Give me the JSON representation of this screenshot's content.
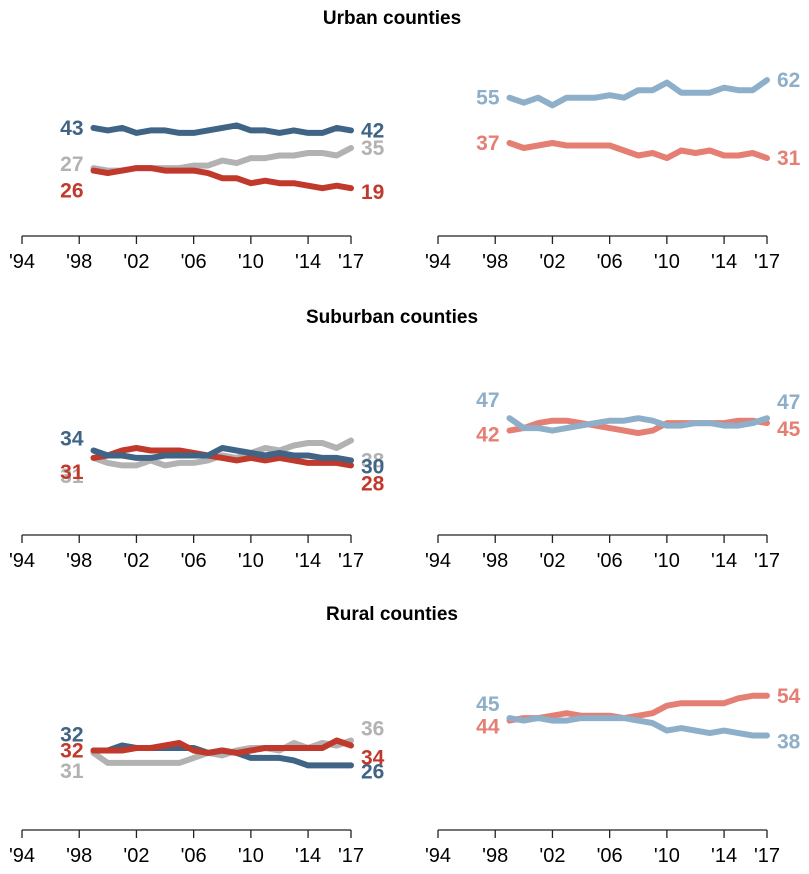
{
  "chart_data": [
    {
      "type": "line",
      "title": "Urban counties",
      "x": [
        1999,
        2000,
        2001,
        2002,
        2003,
        2004,
        2005,
        2006,
        2007,
        2008,
        2009,
        2010,
        2011,
        2012,
        2013,
        2014,
        2015,
        2016,
        2017
      ],
      "xticks": [
        "'94",
        "'98",
        "'02",
        "'06",
        "'10",
        "'14",
        "'17"
      ],
      "xlim": [
        1994,
        2017
      ],
      "ylim": [
        0,
        70
      ],
      "grid": false,
      "series": [
        {
          "key": "dem",
          "color": "#3f6485",
          "values": [
            43,
            42,
            43,
            41,
            42,
            42,
            41,
            41,
            42,
            43,
            44,
            42,
            42,
            41,
            42,
            41,
            41,
            43,
            42
          ],
          "start_label": "43",
          "end_label": "42"
        },
        {
          "key": "ind",
          "color": "#b2b2b2",
          "values": [
            27,
            26,
            26,
            27,
            27,
            27,
            27,
            28,
            28,
            30,
            29,
            31,
            31,
            32,
            32,
            33,
            33,
            32,
            35
          ],
          "start_label": "27",
          "end_label": "35"
        },
        {
          "key": "rep",
          "color": "#c0392b",
          "values": [
            26,
            25,
            26,
            27,
            27,
            26,
            26,
            26,
            25,
            23,
            23,
            21,
            22,
            21,
            21,
            20,
            19,
            20,
            19
          ],
          "start_label": "26",
          "end_label": "19"
        }
      ]
    },
    {
      "type": "line",
      "title": "",
      "x": [
        1999,
        2000,
        2001,
        2002,
        2003,
        2004,
        2005,
        2006,
        2007,
        2008,
        2009,
        2010,
        2011,
        2012,
        2013,
        2014,
        2015,
        2016,
        2017
      ],
      "xticks": [
        "'94",
        "'98",
        "'02",
        "'06",
        "'10",
        "'14",
        "'17"
      ],
      "xlim": [
        1994,
        2017
      ],
      "ylim": [
        0,
        70
      ],
      "grid": false,
      "series": [
        {
          "key": "dem_lean",
          "color": "#8eafc9",
          "values": [
            55,
            53,
            55,
            52,
            55,
            55,
            55,
            56,
            55,
            58,
            58,
            61,
            57,
            57,
            57,
            59,
            58,
            58,
            62
          ],
          "start_label": "55",
          "end_label": "62"
        },
        {
          "key": "rep_lean",
          "color": "#e57f73",
          "values": [
            37,
            35,
            36,
            37,
            36,
            36,
            36,
            36,
            34,
            32,
            33,
            31,
            34,
            33,
            34,
            32,
            32,
            33,
            31
          ],
          "start_label": "37",
          "end_label": "31"
        }
      ]
    },
    {
      "type": "line",
      "title": "Suburban counties",
      "x": [
        1999,
        2000,
        2001,
        2002,
        2003,
        2004,
        2005,
        2006,
        2007,
        2008,
        2009,
        2010,
        2011,
        2012,
        2013,
        2014,
        2015,
        2016,
        2017
      ],
      "xticks": [
        "'94",
        "'98",
        "'02",
        "'06",
        "'10",
        "'14",
        "'17"
      ],
      "xlim": [
        1994,
        2017
      ],
      "ylim": [
        0,
        70
      ],
      "grid": false,
      "series": [
        {
          "key": "ind",
          "color": "#b2b2b2",
          "values": [
            31,
            29,
            28,
            28,
            30,
            28,
            29,
            29,
            30,
            32,
            31,
            33,
            35,
            34,
            36,
            37,
            37,
            35,
            38
          ],
          "start_label": "31",
          "end_label": "38"
        },
        {
          "key": "rep",
          "color": "#c0392b",
          "values": [
            31,
            32,
            34,
            35,
            34,
            34,
            34,
            33,
            32,
            31,
            30,
            31,
            30,
            31,
            30,
            29,
            29,
            29,
            28
          ],
          "start_label": "31",
          "end_label": "28"
        },
        {
          "key": "dem",
          "color": "#3f6485",
          "values": [
            34,
            32,
            32,
            31,
            31,
            32,
            32,
            32,
            32,
            35,
            34,
            33,
            32,
            33,
            32,
            32,
            31,
            31,
            30
          ],
          "start_label": "34",
          "end_label": "30"
        }
      ]
    },
    {
      "type": "line",
      "title": "",
      "x": [
        1999,
        2000,
        2001,
        2002,
        2003,
        2004,
        2005,
        2006,
        2007,
        2008,
        2009,
        2010,
        2011,
        2012,
        2013,
        2014,
        2015,
        2016,
        2017
      ],
      "xticks": [
        "'94",
        "'98",
        "'02",
        "'06",
        "'10",
        "'14",
        "'17"
      ],
      "xlim": [
        1994,
        2017
      ],
      "ylim": [
        0,
        70
      ],
      "grid": false,
      "series": [
        {
          "key": "rep_lean",
          "color": "#e57f73",
          "values": [
            42,
            43,
            45,
            46,
            46,
            45,
            44,
            43,
            42,
            41,
            42,
            45,
            45,
            45,
            45,
            45,
            46,
            46,
            45
          ],
          "start_label": "42",
          "end_label": "45"
        },
        {
          "key": "dem_lean",
          "color": "#8eafc9",
          "values": [
            47,
            43,
            43,
            42,
            43,
            44,
            45,
            46,
            46,
            47,
            46,
            44,
            44,
            45,
            45,
            44,
            44,
            45,
            47
          ],
          "start_label": "47",
          "end_label": "47"
        }
      ]
    },
    {
      "type": "line",
      "title": "Rural counties",
      "x": [
        1999,
        2000,
        2001,
        2002,
        2003,
        2004,
        2005,
        2006,
        2007,
        2008,
        2009,
        2010,
        2011,
        2012,
        2013,
        2014,
        2015,
        2016,
        2017
      ],
      "xticks": [
        "'94",
        "'98",
        "'02",
        "'06",
        "'10",
        "'14",
        "'17"
      ],
      "xlim": [
        1994,
        2017
      ],
      "ylim": [
        0,
        70
      ],
      "grid": false,
      "series": [
        {
          "key": "ind",
          "color": "#b2b2b2",
          "values": [
            31,
            27,
            27,
            27,
            27,
            27,
            27,
            29,
            31,
            30,
            32,
            33,
            33,
            32,
            35,
            33,
            35,
            34,
            36
          ],
          "start_label": "31",
          "end_label": "36"
        },
        {
          "key": "dem",
          "color": "#3f6485",
          "values": [
            32,
            32,
            34,
            33,
            33,
            33,
            33,
            33,
            31,
            32,
            31,
            29,
            29,
            29,
            28,
            26,
            26,
            26,
            26
          ],
          "start_label": "32",
          "end_label": "26"
        },
        {
          "key": "rep",
          "color": "#c0392b",
          "values": [
            32,
            32,
            32,
            33,
            33,
            34,
            35,
            32,
            31,
            32,
            31,
            32,
            33,
            33,
            33,
            33,
            33,
            36,
            34
          ],
          "start_label": "32",
          "end_label": "34"
        }
      ]
    },
    {
      "type": "line",
      "title": "",
      "x": [
        1999,
        2000,
        2001,
        2002,
        2003,
        2004,
        2005,
        2006,
        2007,
        2008,
        2009,
        2010,
        2011,
        2012,
        2013,
        2014,
        2015,
        2016,
        2017
      ],
      "xticks": [
        "'94",
        "'98",
        "'02",
        "'06",
        "'10",
        "'14",
        "'17"
      ],
      "xlim": [
        1994,
        2017
      ],
      "ylim": [
        0,
        70
      ],
      "grid": false,
      "series": [
        {
          "key": "rep_lean",
          "color": "#e57f73",
          "values": [
            44,
            45,
            45,
            46,
            47,
            46,
            46,
            46,
            45,
            46,
            47,
            50,
            51,
            51,
            51,
            51,
            53,
            54,
            54
          ],
          "start_label": "44",
          "end_label": "54"
        },
        {
          "key": "dem_lean",
          "color": "#8eafc9",
          "values": [
            45,
            44,
            45,
            44,
            44,
            45,
            45,
            45,
            45,
            44,
            43,
            40,
            41,
            40,
            39,
            40,
            39,
            38,
            38
          ],
          "start_label": "45",
          "end_label": "38"
        }
      ]
    }
  ]
}
